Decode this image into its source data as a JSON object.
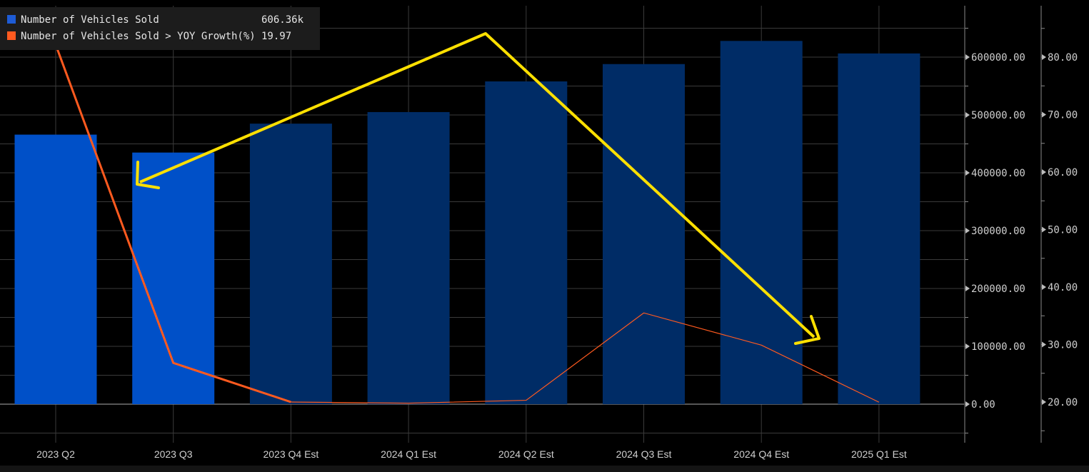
{
  "legend": {
    "items": [
      {
        "label": "Number of Vehicles Sold",
        "value": "606.36k"
      },
      {
        "label": "Number of Vehicles Sold > YOY Growth(%)",
        "value": "19.97"
      }
    ]
  },
  "colors": {
    "bar_actual": "#0050c8",
    "bar_estimate": "#002c66",
    "growth_line": "#ff5a1f",
    "annotation_arrow": "#ffe000",
    "grid": "#3a3a3a",
    "text": "#cfcfcf"
  },
  "chart_data": {
    "type": "bar",
    "categories": [
      "2023 Q2",
      "2023 Q3",
      "2023 Q4 Est",
      "2024 Q1 Est",
      "2024 Q2 Est",
      "2024 Q3 Est",
      "2024 Q4 Est",
      "2025 Q1 Est"
    ],
    "estimate": [
      false,
      false,
      true,
      true,
      true,
      true,
      true,
      true
    ],
    "series": [
      {
        "name": "Number of Vehicles Sold",
        "axis": "left",
        "values": [
          466000,
          435000,
          485000,
          505000,
          558000,
          588000,
          628000,
          606360
        ]
      },
      {
        "name": "Number of Vehicles Sold > YOY Growth(%)",
        "axis": "right",
        "values": [
          83.5,
          26.8,
          20.0,
          19.8,
          20.3,
          35.5,
          29.9,
          19.97
        ]
      }
    ],
    "left_axis": {
      "ticks": [
        "600000.00",
        "500000.00",
        "400000.00",
        "300000.00",
        "200000.00",
        "100000.00",
        "0.00"
      ],
      "range": [
        -50000,
        690000
      ]
    },
    "right_axis": {
      "ticks": [
        "80.00",
        "70.00",
        "60.00",
        "50.00",
        "40.00",
        "30.00",
        "20.00"
      ],
      "range": [
        15,
        90
      ]
    },
    "grid": true,
    "legend": "top-left"
  }
}
